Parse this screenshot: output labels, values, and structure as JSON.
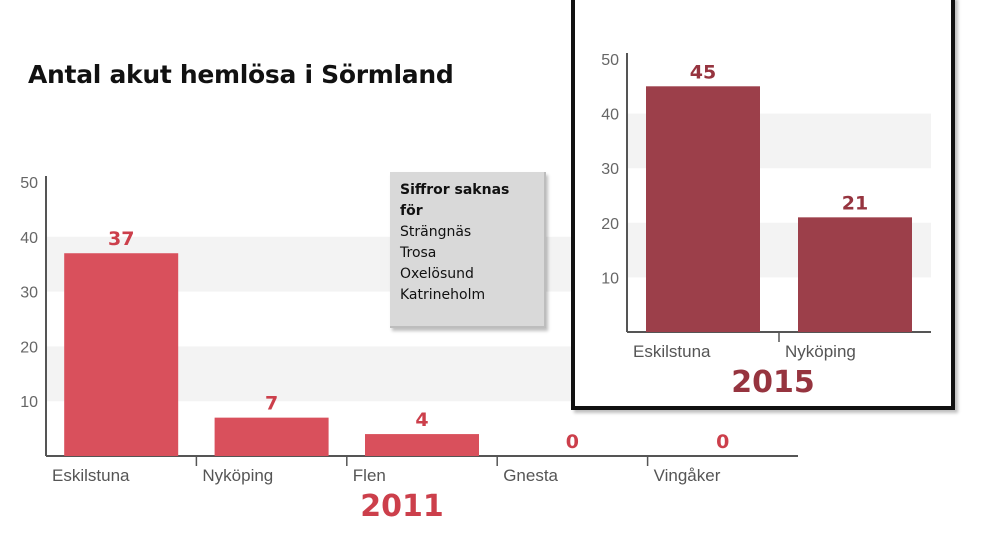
{
  "title": "Antal akut hemlösa i Sörmland",
  "note": {
    "heading": "Siffror saknas för",
    "items": [
      "Strängnäs",
      "Trosa",
      "Oxelösund",
      "Katrineholm"
    ]
  },
  "colors": {
    "bar_2011": "#d9505c",
    "label_2011": "#cc3f4b",
    "bar_2015": "#9c3f4a",
    "label_2015": "#96343f",
    "band": "#f3f3f3",
    "axis": "#555555"
  },
  "chart_data": [
    {
      "type": "bar",
      "title": "2011",
      "categories": [
        "Eskilstuna",
        "Nyköping",
        "Flen",
        "Gnesta",
        "Vingåker"
      ],
      "values": [
        37,
        7,
        4,
        0,
        0
      ],
      "value_labels": [
        "37",
        "7",
        "4",
        "0",
        "0"
      ],
      "ylim": [
        0,
        50
      ],
      "yticks": [
        "10",
        "20",
        "30",
        "40",
        "50"
      ],
      "grid": "alternating bands",
      "legend": "none"
    },
    {
      "type": "bar",
      "title": "2015",
      "categories": [
        "Eskilstuna",
        "Nyköping"
      ],
      "values": [
        45,
        21
      ],
      "value_labels": [
        "45",
        "21"
      ],
      "ylim": [
        0,
        50
      ],
      "yticks": [
        "10",
        "20",
        "30",
        "40",
        "50"
      ],
      "grid": "alternating bands",
      "legend": "none"
    }
  ]
}
